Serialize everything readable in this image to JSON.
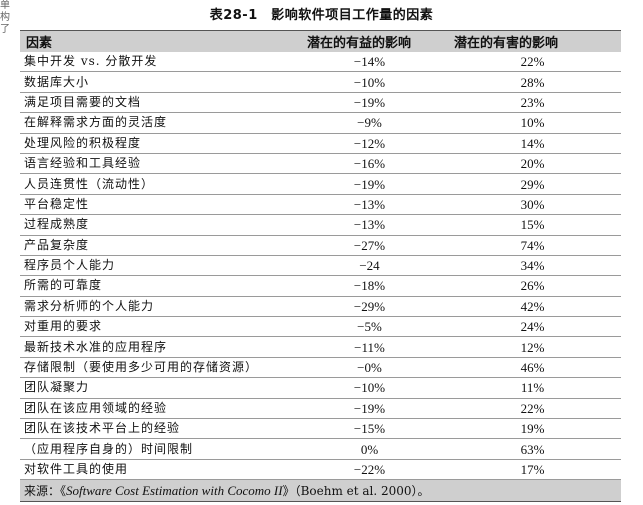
{
  "margin_marks": [
    "单",
    "构",
    "了"
  ],
  "title": "表28-1　影响软件项目工作量的因素",
  "headers": [
    "因素",
    "潜在的有益的影响",
    "潜在的有害的影响"
  ],
  "rows": [
    [
      "集中开发 vs. 分散开发",
      "−14%",
      "22%"
    ],
    [
      "数据库大小",
      "−10%",
      "28%"
    ],
    [
      "满足项目需要的文档",
      "−19%",
      "23%"
    ],
    [
      "在解释需求方面的灵活度",
      "−9%",
      "10%"
    ],
    [
      "处理风险的积极程度",
      "−12%",
      "14%"
    ],
    [
      "语言经验和工具经验",
      "−16%",
      "20%"
    ],
    [
      "人员连贯性（流动性）",
      "−19%",
      "29%"
    ],
    [
      "平台稳定性",
      "−13%",
      "30%"
    ],
    [
      "过程成熟度",
      "−13%",
      "15%"
    ],
    [
      "产品复杂度",
      "−27%",
      "74%"
    ],
    [
      "程序员个人能力",
      "−24",
      "34%"
    ],
    [
      "所需的可靠度",
      "−18%",
      "26%"
    ],
    [
      "需求分析师的个人能力",
      "−29%",
      "42%"
    ],
    [
      "对重用的要求",
      "−5%",
      "24%"
    ],
    [
      "最新技术水准的应用程序",
      "−11%",
      "12%"
    ],
    [
      "存储限制（要使用多少可用的存储资源）",
      "−0%",
      "46%"
    ],
    [
      "团队凝聚力",
      "−10%",
      "11%"
    ],
    [
      "团队在该应用领域的经验",
      "−19%",
      "22%"
    ],
    [
      "团队在该技术平台上的经验",
      "−15%",
      "19%"
    ],
    [
      "（应用程序自身的）时间限制",
      "0%",
      "63%"
    ],
    [
      "对软件工具的使用",
      "−22%",
      "17%"
    ]
  ],
  "source": {
    "prefix": "来源：《",
    "book": "Software Cost Estimation with Cocomo II",
    "suffix": "》（Boehm et al. 2000）。"
  }
}
